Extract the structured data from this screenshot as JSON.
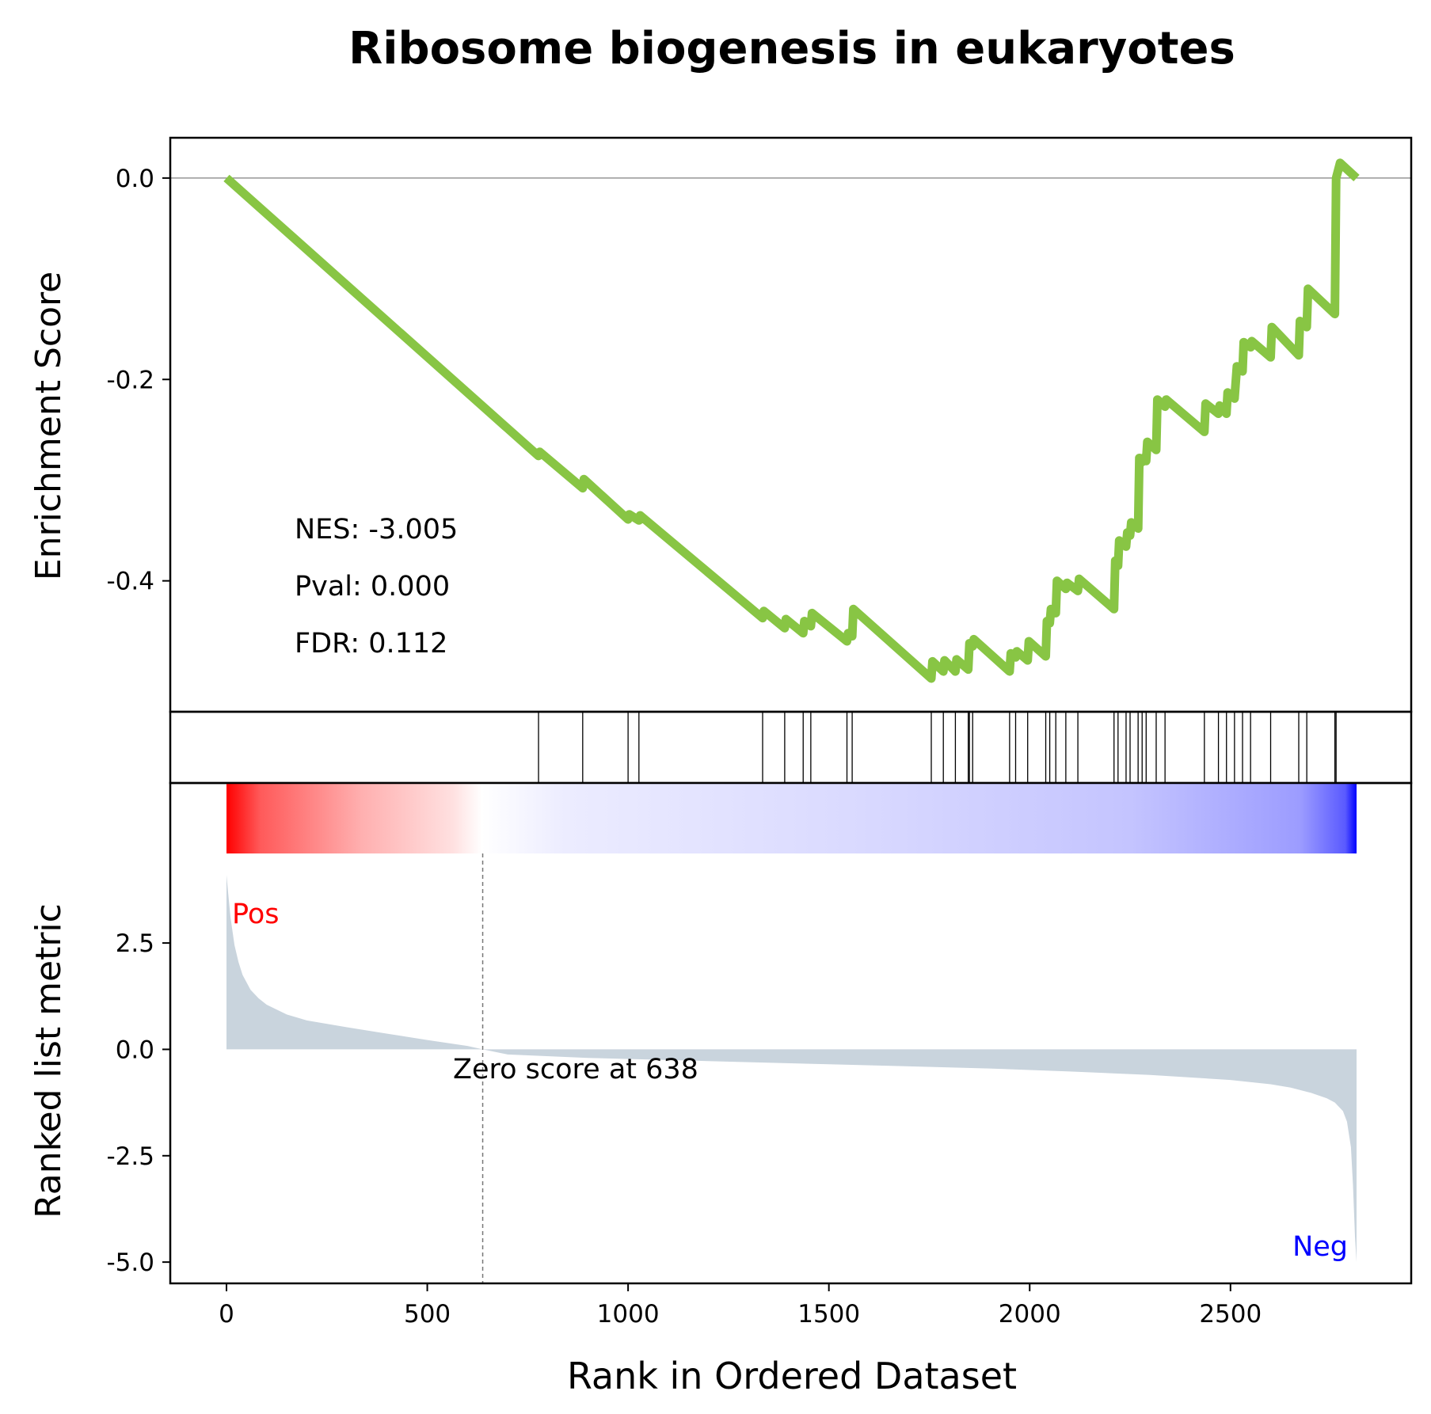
{
  "chart_data": {
    "type": "line",
    "title": "Ribosome biogenesis in eukaryotes",
    "colors": {
      "es_line": "#88c544",
      "metric_fill": "#c9d4dd",
      "pos_color": "#ff0000",
      "neg_color": "#0000ff",
      "hit_color": "#000000",
      "zero_line": "#808080"
    },
    "enrichment_panel": {
      "ylabel": "Enrichment Score",
      "yticks": [
        "0.0",
        "-0.2",
        "-0.4"
      ],
      "ytick_values": [
        0.0,
        -0.2,
        -0.4
      ],
      "ylim": [
        -0.53,
        0.04
      ],
      "stats": {
        "nes": "NES: -3.005",
        "pval": "Pval: 0.000",
        "fdr": "FDR: 0.112"
      },
      "series": [
        {
          "x": [
            0,
            777,
            780,
            887,
            890,
            1000,
            1003,
            1027,
            1030,
            1335,
            1338,
            1390,
            1393,
            1436,
            1439,
            1455,
            1458,
            1545,
            1548,
            1558,
            1561,
            1755,
            1758,
            1785,
            1788,
            1815,
            1818,
            1847,
            1850,
            1858,
            1861,
            1950,
            1953,
            1965,
            1968,
            1995,
            1998,
            2040,
            2043,
            2050,
            2053,
            2065,
            2068,
            2090,
            2093,
            2120,
            2123,
            2210,
            2213,
            2220,
            2223,
            2240,
            2243,
            2250,
            2253,
            2270,
            2273,
            2280,
            2283,
            2290,
            2293,
            2315,
            2318,
            2337,
            2340,
            2435,
            2438,
            2470,
            2473,
            2490,
            2493,
            2510,
            2516,
            2530,
            2533,
            2550,
            2553,
            2600,
            2603,
            2670,
            2673,
            2690,
            2693,
            2760,
            2763,
            2773,
            2814
          ],
          "y": [
            0.0,
            -0.276,
            -0.272,
            -0.308,
            -0.299,
            -0.339,
            -0.334,
            -0.34,
            -0.335,
            -0.437,
            -0.43,
            -0.447,
            -0.438,
            -0.452,
            -0.44,
            -0.445,
            -0.432,
            -0.46,
            -0.452,
            -0.455,
            -0.428,
            -0.497,
            -0.48,
            -0.49,
            -0.479,
            -0.49,
            -0.478,
            -0.488,
            -0.462,
            -0.465,
            -0.458,
            -0.49,
            -0.472,
            -0.476,
            -0.47,
            -0.479,
            -0.46,
            -0.475,
            -0.44,
            -0.442,
            -0.428,
            -0.432,
            -0.4,
            -0.408,
            -0.402,
            -0.41,
            -0.398,
            -0.428,
            -0.38,
            -0.385,
            -0.36,
            -0.366,
            -0.352,
            -0.355,
            -0.342,
            -0.348,
            -0.278,
            -0.282,
            -0.278,
            -0.281,
            -0.262,
            -0.27,
            -0.22,
            -0.227,
            -0.22,
            -0.252,
            -0.224,
            -0.234,
            -0.226,
            -0.234,
            -0.213,
            -0.219,
            -0.187,
            -0.192,
            -0.163,
            -0.168,
            -0.162,
            -0.178,
            -0.148,
            -0.176,
            -0.142,
            -0.148,
            -0.11,
            -0.135,
            -0.0,
            0.015,
            0.0
          ]
        }
      ]
    },
    "hits": [
      777,
      887,
      1000,
      1027,
      1335,
      1390,
      1436,
      1455,
      1545,
      1558,
      1755,
      1785,
      1815,
      1847,
      1850,
      1858,
      1950,
      1965,
      1995,
      2040,
      2050,
      2065,
      2090,
      2120,
      2210,
      2220,
      2240,
      2250,
      2270,
      2280,
      2290,
      2315,
      2337,
      2435,
      2470,
      2490,
      2510,
      2530,
      2550,
      2600,
      2670,
      2690,
      2760,
      2763
    ],
    "metric_panel": {
      "ylabel": "Ranked list metric",
      "xlabel": "Rank in Ordered Dataset",
      "yticks": [
        "2.5",
        "0.0",
        "-2.5",
        "-5.0"
      ],
      "ytick_values": [
        2.5,
        0.0,
        -2.5,
        -5.0
      ],
      "ylim": [
        -5.5,
        4.4
      ],
      "xlim": [
        -140,
        2950
      ],
      "xticks": [
        "0",
        "500",
        "1000",
        "1500",
        "2000",
        "2500"
      ],
      "xtick_values": [
        0,
        500,
        1000,
        1500,
        2000,
        2500
      ],
      "pos_label": "Pos",
      "neg_label": "Neg",
      "zero_cross": 638,
      "zero_label": "Zero score at 638",
      "n": 2814,
      "curve": {
        "x": [
          0,
          5,
          10,
          20,
          30,
          40,
          60,
          80,
          100,
          150,
          200,
          300,
          400,
          500,
          600,
          638,
          700,
          900,
          1100,
          1300,
          1500,
          1700,
          1900,
          2100,
          2300,
          2500,
          2600,
          2650,
          2700,
          2740,
          2760,
          2780,
          2790,
          2800,
          2805,
          2810,
          2814
        ],
        "y": [
          4.1,
          3.6,
          3.1,
          2.45,
          2.05,
          1.75,
          1.4,
          1.2,
          1.05,
          0.82,
          0.68,
          0.52,
          0.37,
          0.22,
          0.08,
          0.0,
          -0.12,
          -0.2,
          -0.25,
          -0.3,
          -0.35,
          -0.4,
          -0.45,
          -0.52,
          -0.6,
          -0.72,
          -0.82,
          -0.9,
          -1.02,
          -1.15,
          -1.25,
          -1.45,
          -1.7,
          -2.3,
          -3.2,
          -4.4,
          -5.0
        ]
      }
    }
  }
}
